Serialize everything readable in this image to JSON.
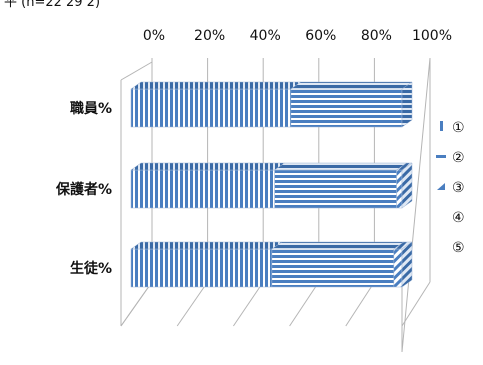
{
  "header_fragment": "平 (n=22 29 2)",
  "chart_data": {
    "type": "bar",
    "orientation": "horizontal",
    "stacked": "percent",
    "style": "3d",
    "title": "",
    "xlabel": "",
    "ylabel": "",
    "xlim": [
      0,
      100
    ],
    "x_ticks": [
      "0%",
      "20%",
      "40%",
      "60%",
      "80%",
      "100%"
    ],
    "categories": [
      "職員%",
      "保護者%",
      "生徒%"
    ],
    "series": [
      {
        "name": "①",
        "values": [
          59,
          53,
          52
        ],
        "pattern": "vertical-stripes",
        "color": "#4a7ec0"
      },
      {
        "name": "②",
        "values": [
          41,
          45,
          45
        ],
        "pattern": "horizontal-stripes",
        "color": "#4a7ec0"
      },
      {
        "name": "③",
        "values": [
          0,
          2,
          3
        ],
        "pattern": "diagonal-stripes",
        "color": "#4a7ec0"
      },
      {
        "name": "④",
        "values": [
          0,
          0,
          0
        ],
        "pattern": "none",
        "color": "#ffffff"
      },
      {
        "name": "⑤",
        "values": [
          0,
          0,
          0
        ],
        "pattern": "none",
        "color": "#ffffff"
      }
    ],
    "legend_position": "right",
    "grid": true
  }
}
